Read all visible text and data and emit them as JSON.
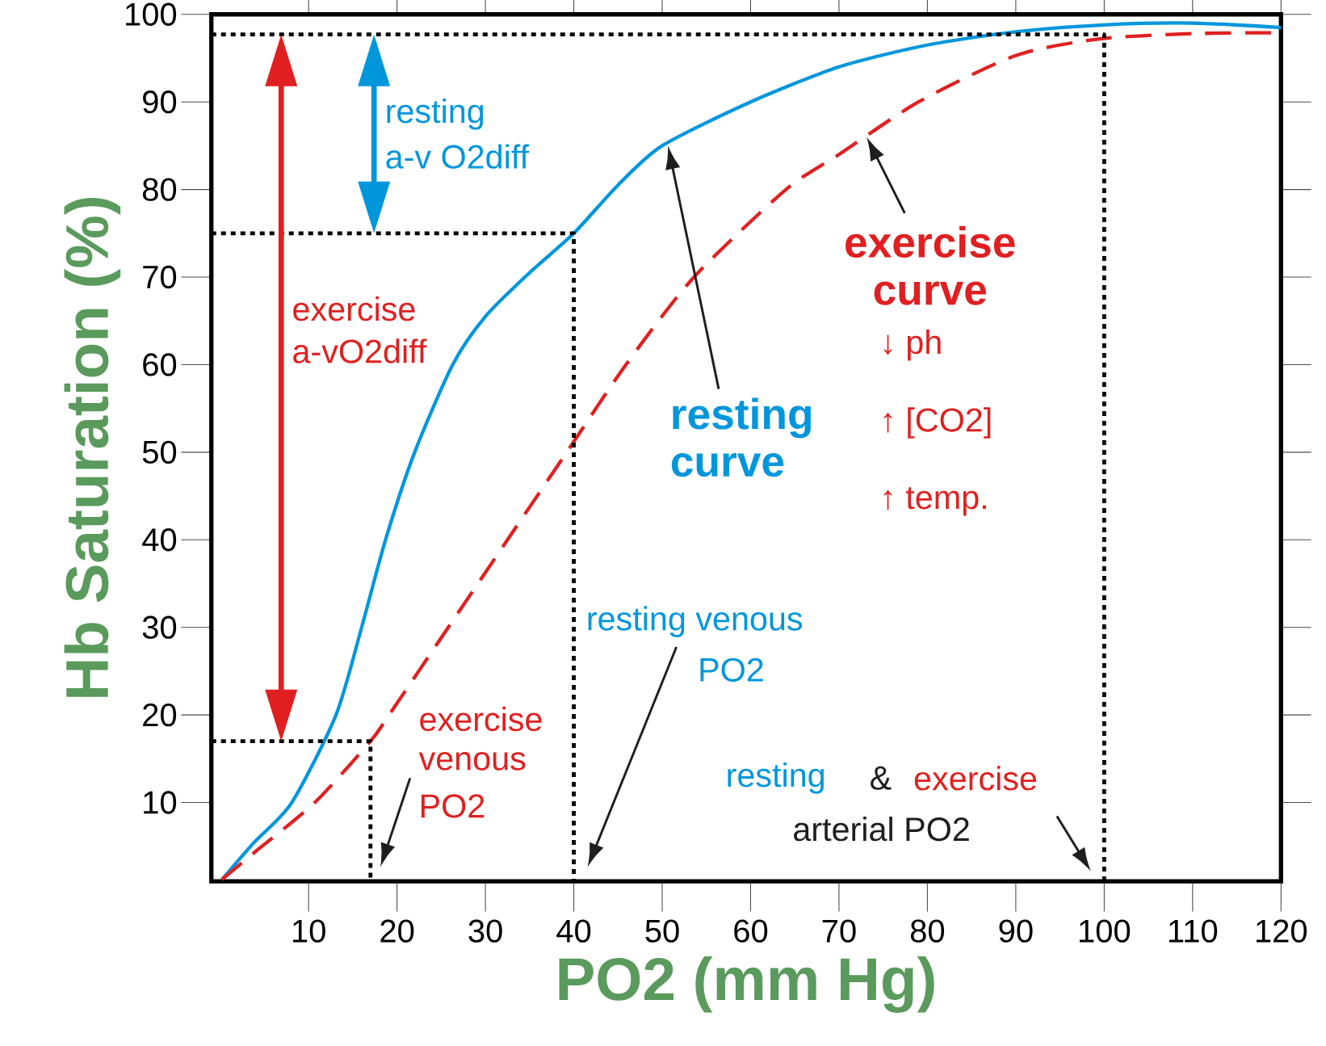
{
  "chart_data": {
    "type": "line",
    "xlabel": "PO2  (mm Hg)",
    "ylabel": "Hb Saturation (%)",
    "xlim": [
      -1,
      120
    ],
    "ylim": [
      1,
      100
    ],
    "xticks": [
      10,
      20,
      30,
      40,
      50,
      60,
      70,
      80,
      90,
      100,
      110,
      120
    ],
    "yticks": [
      10,
      20,
      30,
      40,
      50,
      60,
      70,
      80,
      90,
      100
    ],
    "series": [
      {
        "name": "resting curve",
        "color": "#0096dc",
        "line_style": "solid",
        "x": [
          0.2,
          3.8,
          8.1,
          13.1,
          16,
          18.7,
          22,
          26.3,
          30,
          35,
          40,
          45,
          50,
          60,
          70,
          80,
          90,
          100,
          110,
          120
        ],
        "values": [
          1.2,
          5.4,
          10,
          20,
          30,
          40,
          50,
          60,
          65.5,
          70.5,
          75,
          80.5,
          85,
          90,
          94,
          96.5,
          98,
          98.8,
          99,
          98.5
        ]
      },
      {
        "name": "exercise curve",
        "color": "#e02020",
        "line_style": "dashed",
        "x": [
          0.2,
          4,
          10.7,
          17,
          19.1,
          25.8,
          32.5,
          39.2,
          45.9,
          53.6,
          64,
          70,
          79,
          90,
          99.5,
          110,
          119
        ],
        "values": [
          1.2,
          4.4,
          10,
          17,
          20,
          30,
          40,
          50,
          60,
          70,
          80,
          84,
          90,
          95.3,
          97.2,
          97.8,
          97.9
        ]
      },
      {
        "color": "#000000",
        "line_style": "dotted",
        "x": [
          -1,
          100,
          100
        ],
        "values": [
          97.7,
          97.7,
          1
        ]
      },
      {
        "color": "#000000",
        "line_style": "dotted",
        "x": [
          -1,
          40,
          40
        ],
        "values": [
          75,
          75,
          1
        ]
      },
      {
        "color": "#000000",
        "line_style": "dotted",
        "x": [
          -1,
          17,
          17
        ],
        "values": [
          17,
          17,
          1
        ]
      }
    ],
    "annotations": [
      "resting",
      "a-v O2diff",
      "exercise",
      "a-vO2diff",
      "↓ ph",
      "↑ [CO2]",
      "↑ temp.",
      "resting venous",
      "PO2",
      "exercise",
      "venous",
      "PO2",
      "resting",
      "&",
      "exercise",
      "arterial PO2"
    ]
  }
}
